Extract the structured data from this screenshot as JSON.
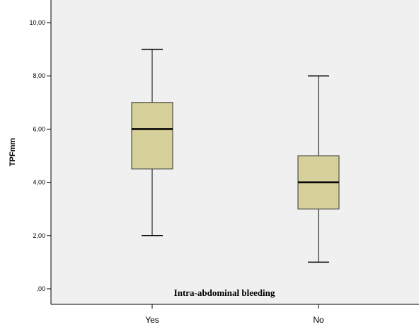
{
  "chart_data": {
    "type": "box",
    "xlabel": "Intra-abdominal bleeding",
    "ylabel": "TPFmm",
    "ylim": [
      0,
      10
    ],
    "yticks": [
      0,
      2,
      4,
      6,
      8,
      10
    ],
    "ytick_labels": [
      ",00",
      "2,00",
      "4,00",
      "6,00",
      "8,00",
      "10,00"
    ],
    "categories": [
      "Yes",
      "No"
    ],
    "boxes": [
      {
        "category": "Yes",
        "min": 2,
        "q1": 4.5,
        "median": 6,
        "q3": 7,
        "max": 9
      },
      {
        "category": "No",
        "min": 1,
        "q1": 3,
        "median": 4,
        "q3": 5,
        "max": 8
      }
    ],
    "box_color": "#d6d09a",
    "plot_background": "#f0f0f0",
    "grid": false
  }
}
